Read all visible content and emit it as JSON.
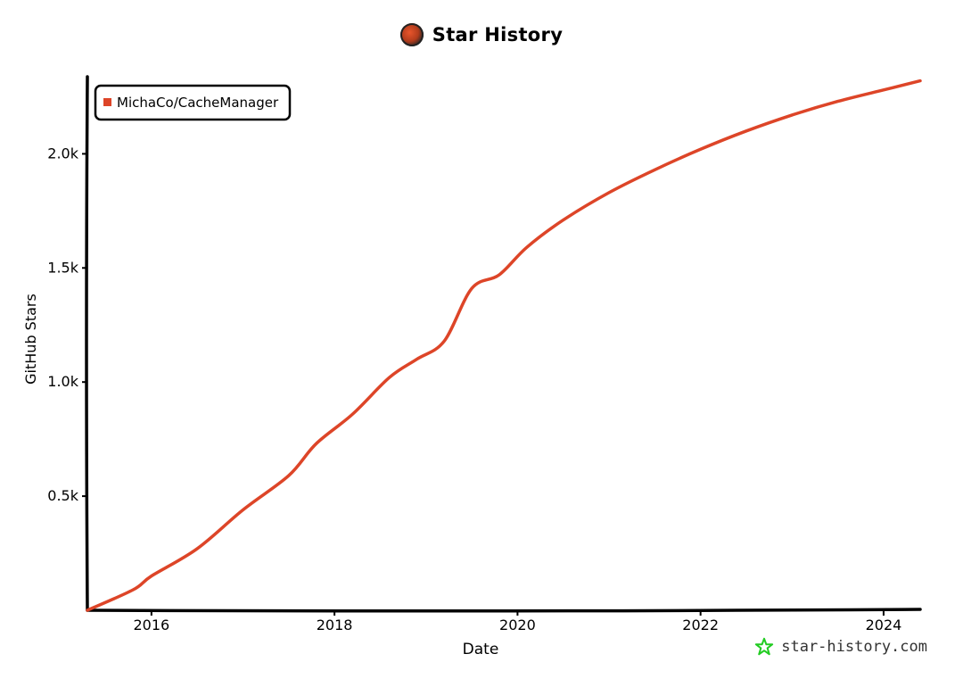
{
  "header": {
    "title": "Star History",
    "logo_icon": "star-history-logo-icon"
  },
  "watermark": {
    "text": "star-history.com",
    "icon": "star-outline-icon",
    "icon_color": "#22cc22"
  },
  "chart_data": {
    "type": "line",
    "title": "Star History",
    "xlabel": "Date",
    "ylabel": "GitHub Stars",
    "x_ticks": [
      "2016",
      "2018",
      "2020",
      "2022",
      "2024"
    ],
    "y_ticks": [
      "0.5k",
      "1.0k",
      "1.5k",
      "2.0k"
    ],
    "xlim": [
      2015.3,
      2024.4
    ],
    "ylim": [
      0,
      2330
    ],
    "grid": false,
    "legend_position": "top-left",
    "series": [
      {
        "name": "MichaCo/CacheManager",
        "color": "#dd4528",
        "x": [
          2015.3,
          2015.8,
          2016.0,
          2016.5,
          2017.0,
          2017.5,
          2017.8,
          2018.2,
          2018.6,
          2018.9,
          2019.2,
          2019.5,
          2019.8,
          2020.1,
          2020.5,
          2021.0,
          2021.5,
          2022.0,
          2022.5,
          2023.0,
          2023.5,
          2024.0,
          2024.4
        ],
        "y": [
          0,
          90,
          150,
          270,
          440,
          590,
          730,
          860,
          1020,
          1100,
          1180,
          1410,
          1470,
          1590,
          1710,
          1830,
          1930,
          2020,
          2100,
          2170,
          2230,
          2280,
          2320
        ]
      }
    ]
  }
}
